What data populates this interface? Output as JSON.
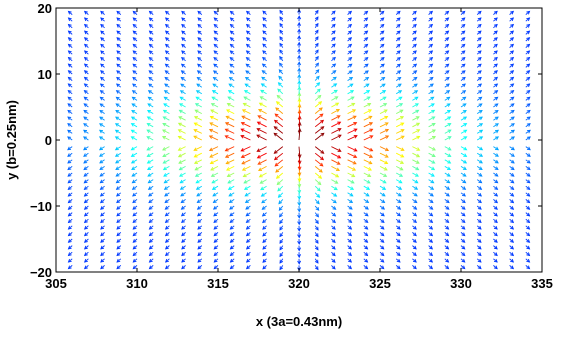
{
  "chart_data": {
    "type": "quiver",
    "xlabel": "x (3a=0.43nm)",
    "ylabel": "y (b=0.25nm)",
    "xlim": [
      305,
      335
    ],
    "ylim": [
      -20,
      20
    ],
    "xticks": [
      305,
      310,
      315,
      320,
      325,
      330,
      335
    ],
    "yticks": [
      -20,
      -10,
      0,
      10,
      20
    ],
    "xtick_labels": [
      "305",
      "310",
      "315",
      "320",
      "325",
      "330",
      "335"
    ],
    "ytick_labels": [
      "−20",
      "−10",
      "0",
      "10",
      "20"
    ],
    "grid": false,
    "legend": "none",
    "colormap": "jet",
    "field": {
      "x_range": [
        306,
        334
      ],
      "y_range": [
        -19,
        19
      ],
      "x_step": 1,
      "y_step": 1,
      "center_x": 320,
      "center_y": 0,
      "pattern": "radial-outward vortex core centered at (320, 0); magnitude highest in core, colored by magnitude"
    },
    "colors": {
      "low": "#0000c8",
      "mid_low": "#00c8ff",
      "mid": "#ffff00",
      "mid_high": "#ff8800",
      "high": "#c80000"
    }
  }
}
